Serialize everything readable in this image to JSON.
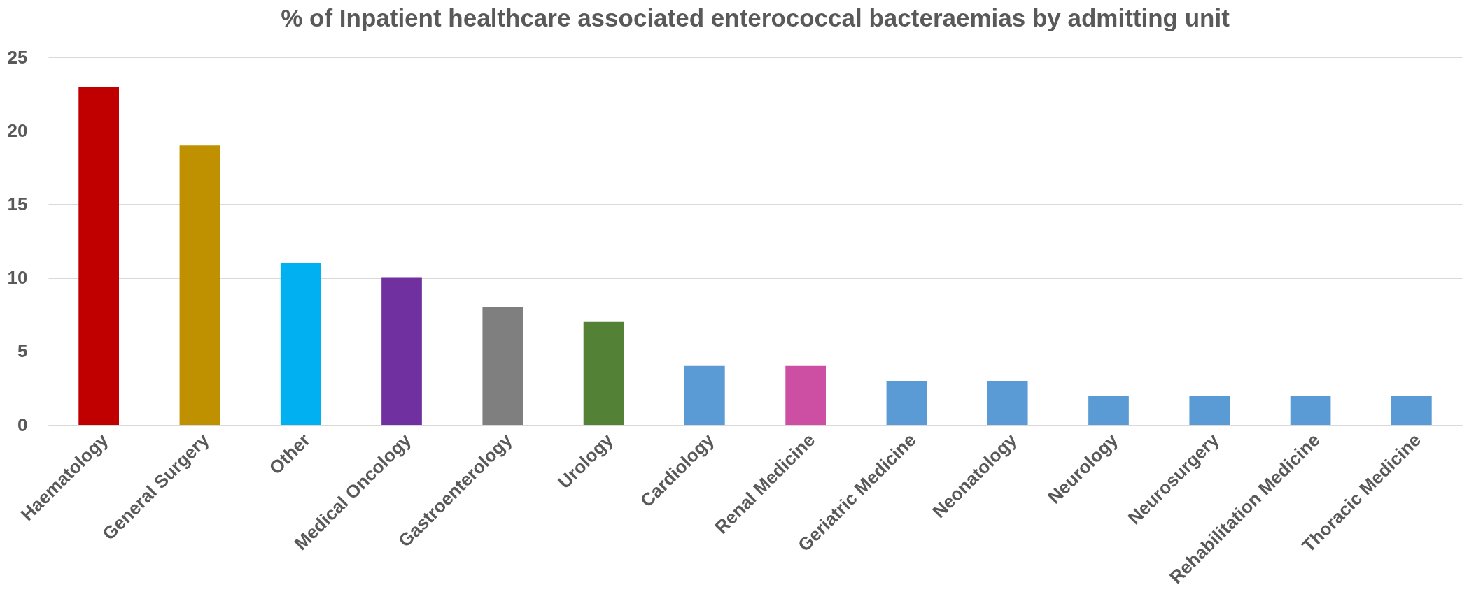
{
  "chart_data": {
    "type": "bar",
    "title": "% of Inpatient healthcare associated enterococcal bacteraemias by admitting unit",
    "categories": [
      "Haematology",
      "General Surgery",
      "Other",
      "Medical Oncology",
      "Gastroenterology",
      "Urology",
      "Cardiology",
      "Renal Medicine",
      "Geriatric Medicine",
      "Neonatology",
      "Neurology",
      "Neurosurgery",
      "Rehabilitation Medicine",
      "Thoracic Medicine"
    ],
    "values": [
      23,
      19,
      11,
      10,
      8,
      7,
      4,
      4,
      3,
      3,
      2,
      2,
      2,
      2
    ],
    "colors": [
      "#c00000",
      "#bf9000",
      "#00b0f0",
      "#7030a0",
      "#7f7f7f",
      "#538135",
      "#5b9bd5",
      "#cc4fa3",
      "#5b9bd5",
      "#5b9bd5",
      "#5b9bd5",
      "#5b9bd5",
      "#5b9bd5",
      "#5b9bd5"
    ],
    "ylim": [
      0,
      25
    ],
    "yticks": [
      0,
      5,
      10,
      15,
      20,
      25
    ],
    "grid": "y"
  }
}
